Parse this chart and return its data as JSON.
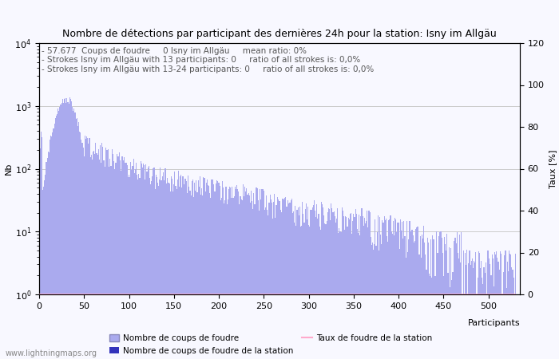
{
  "title": "Nombre de détections par participant des dernières 24h pour la station: Isny im Allgäu",
  "xlabel": "Participants",
  "ylabel_left": "Nb",
  "ylabel_right": "Taux [%]",
  "annotation_lines": [
    "- 57.677  Coups de foudre     0 Isny im Allgäu     mean ratio: 0%",
    "- Strokes Isny im Allgäu with 13 participants: 0     ratio of all strokes is: 0,0%",
    "- Strokes Isny im Allgäu with 13-24 participants: 0     ratio of all strokes is: 0,0%"
  ],
  "watermark": "www.lightningmaps.org",
  "bar_color_main": "#aaaaee",
  "bar_color_station": "#3333bb",
  "line_color": "#ffaacc",
  "legend_labels": [
    "Nombre de coups de foudre",
    "Nombre de coups de foudre de la station",
    "Taux de foudre de la station"
  ],
  "num_participants": 530,
  "ylim_right": [
    0,
    120
  ],
  "background_color": "#f8f8ff",
  "grid_color": "#cccccc",
  "title_fontsize": 9,
  "tick_fontsize": 8,
  "annotation_fontsize": 7.5,
  "seed": 42
}
